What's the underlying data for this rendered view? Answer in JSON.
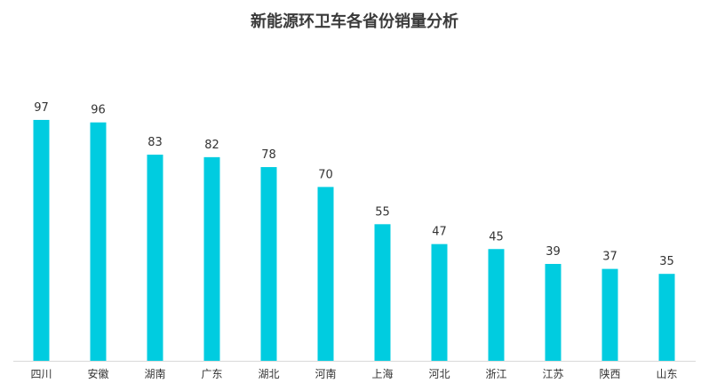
{
  "chart_data": {
    "type": "bar",
    "title": "新能源环卫车各省份销量分析",
    "xlabel": "",
    "ylabel": "",
    "categories": [
      "四川",
      "安徽",
      "湖南",
      "广东",
      "湖北",
      "河南",
      "上海",
      "河北",
      "浙江",
      "江苏",
      "陕西",
      "山东"
    ],
    "values": [
      97,
      96,
      83,
      82,
      78,
      70,
      55,
      47,
      45,
      39,
      37,
      35
    ],
    "ylim": [
      0,
      107
    ],
    "bar_color": "#00CCE0",
    "axis_color": "#D9D9D9",
    "grid": false,
    "legend": "none",
    "data_labels": true
  }
}
